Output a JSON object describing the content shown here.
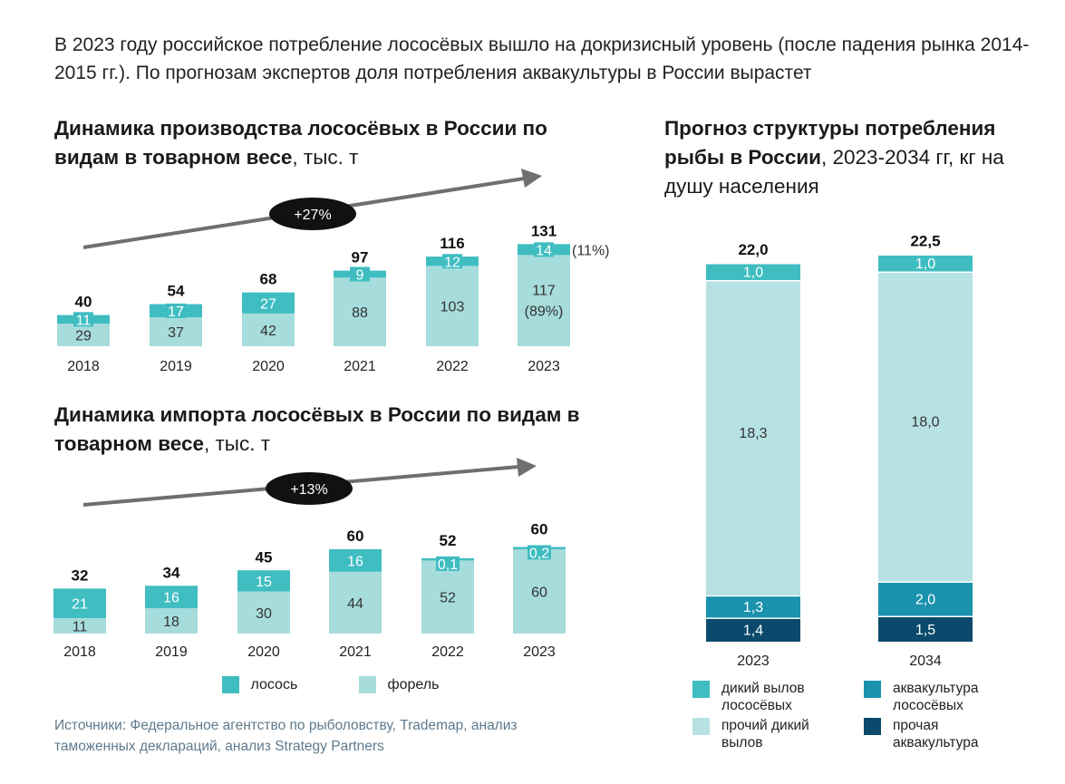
{
  "headline": "В 2023 году российское потребление лососёвых вышло на докризисный уровень (после падения рынка 2014-2015 гг.). По прогнозам экспертов доля потребления аквакультуры в России вырастет",
  "colors": {
    "salmon": "#3fbdc1",
    "trout": "#a7dcdc",
    "wild_catch_salmon": "#3fbdc1",
    "other_wild": "#b7e2e4",
    "aquaculture_salmon": "#1a92ad",
    "other_aquaculture": "#0b4a6c"
  },
  "legend_left": {
    "salmon": "лосось",
    "trout": "форель"
  },
  "legend_right": {
    "wild_salmon": "дикий вылов лососёвых",
    "aqua_salmon": "аквакультура лососёвых",
    "other_wild": "прочий дикий вылов",
    "other_aqua": "прочая аквакультура"
  },
  "sources": "Источники: Федеральное агентство по рыболовству, Trademap, анализ таможенных деклараций, анализ Strategy Partners",
  "chart_data": [
    {
      "type": "bar",
      "stacked": true,
      "title": "Динамика производства лососёвых в России по видам в товарном весе",
      "unit": ", тыс. т",
      "categories": [
        "2018",
        "2019",
        "2020",
        "2021",
        "2022",
        "2023"
      ],
      "series": [
        {
          "name": "форель",
          "values": [
            29,
            37,
            42,
            88,
            103,
            117
          ]
        },
        {
          "name": "лосось",
          "values": [
            11,
            17,
            27,
            9,
            12,
            14
          ]
        }
      ],
      "totals": [
        40,
        54,
        68,
        97,
        116,
        131
      ],
      "growth_label": "+27%",
      "annotations": {
        "trout_share_2023": "(89%)",
        "salmon_share_2023": "(11%)"
      }
    },
    {
      "type": "bar",
      "stacked": true,
      "title": "Динамика импорта лососёвых в России по видам в товарном весе",
      "unit": ", тыс. т",
      "categories": [
        "2018",
        "2019",
        "2020",
        "2021",
        "2022",
        "2023"
      ],
      "series": [
        {
          "name": "форель",
          "values": [
            11,
            18,
            30,
            44,
            52,
            60
          ]
        },
        {
          "name": "лосось",
          "values": [
            21,
            16,
            15,
            16,
            0.1,
            0.2
          ]
        }
      ],
      "segment_labels": {
        "форель": [
          "11",
          "18",
          "30",
          "44",
          "52",
          "60"
        ],
        "лосось": [
          "21",
          "16",
          "15",
          "16",
          "0,1",
          "0,2"
        ]
      },
      "totals": [
        32,
        34,
        45,
        60,
        52,
        60
      ],
      "growth_label": "+13%"
    },
    {
      "type": "bar",
      "stacked": true,
      "title": "Прогноз структуры потребления рыбы в России",
      "subtitle": ", 2023-2034 гг, кг на душу населения",
      "categories": [
        "2023",
        "2034"
      ],
      "series": [
        {
          "name": "прочая аквакультура",
          "values": [
            1.4,
            1.5
          ],
          "labels": [
            "1,4",
            "1,5"
          ]
        },
        {
          "name": "аквакультура лососёвых",
          "values": [
            1.3,
            2.0
          ],
          "labels": [
            "1,3",
            "2,0"
          ]
        },
        {
          "name": "прочий дикий вылов",
          "values": [
            18.3,
            18.0
          ],
          "labels": [
            "18,3",
            "18,0"
          ]
        },
        {
          "name": "дикий вылов лососёвых",
          "values": [
            1.0,
            1.0
          ],
          "labels": [
            "1,0",
            "1,0"
          ]
        }
      ],
      "totals": [
        22.0,
        22.5
      ],
      "total_labels": [
        "22,0",
        "22,5"
      ]
    }
  ]
}
